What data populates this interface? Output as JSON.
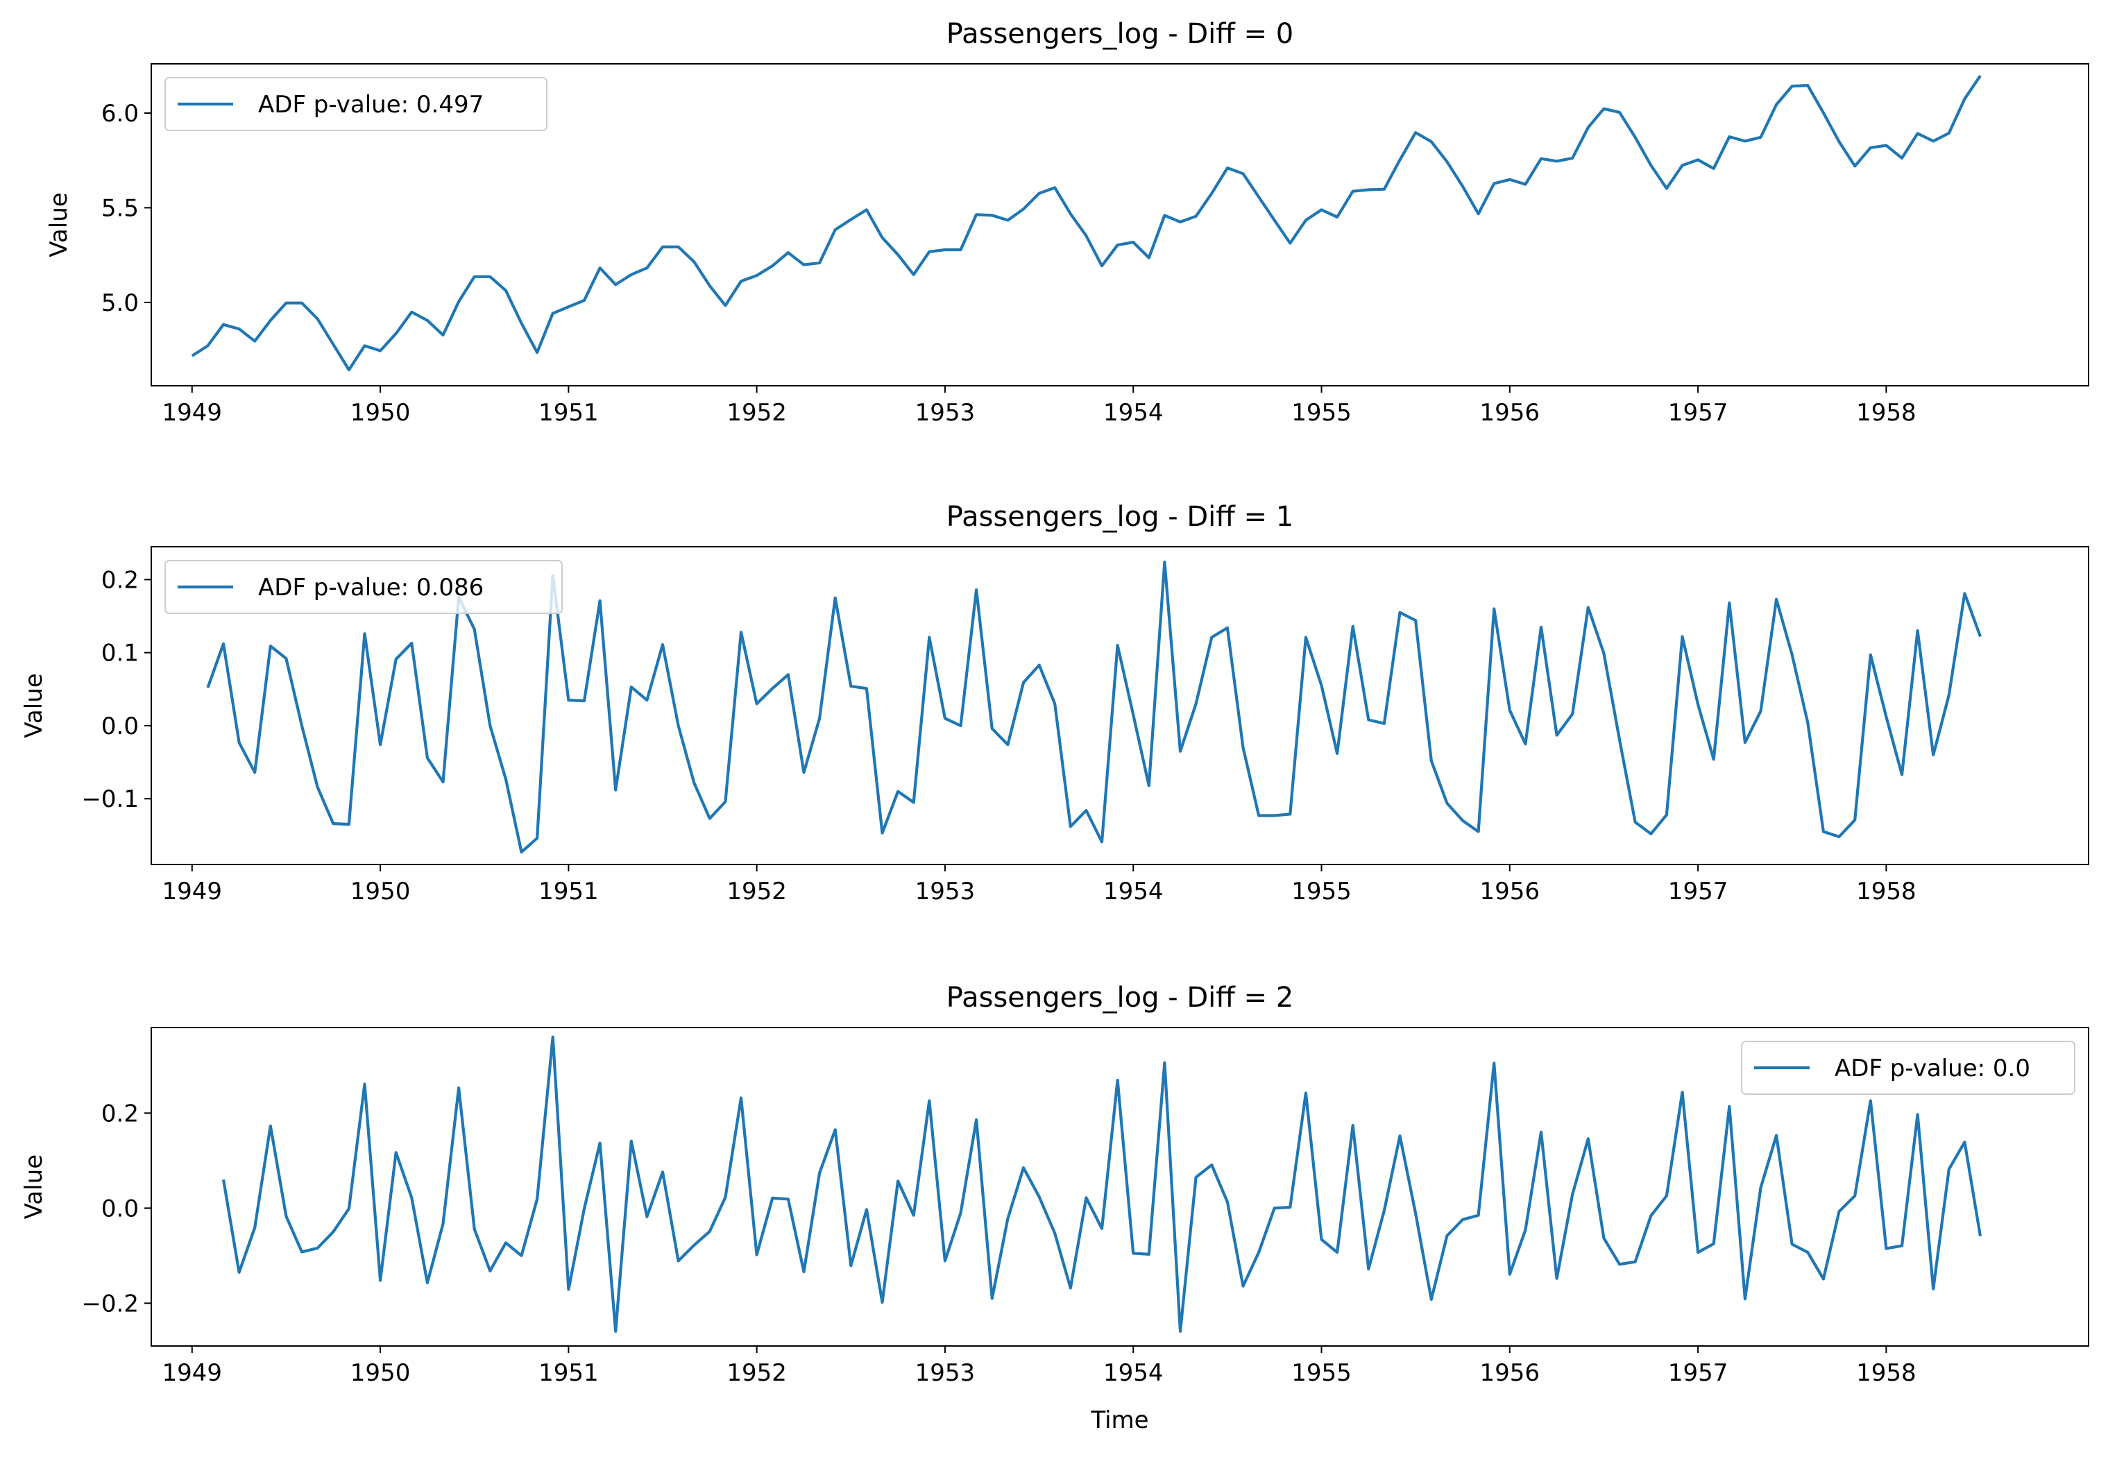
{
  "figure": {
    "xlabel": "Time",
    "line_color": "#1f77b4"
  },
  "chart_data": [
    {
      "type": "line",
      "title": "Passengers_log - Diff = 0",
      "xlabel": "",
      "ylabel": "Value",
      "x_start": "1949-01",
      "x_step": "1 month",
      "xticks": [
        "1949",
        "1950",
        "1951",
        "1952",
        "1953",
        "1954",
        "1955",
        "1956",
        "1957",
        "1958"
      ],
      "yticks": [
        "5.0",
        "5.5",
        "6.0"
      ],
      "ylim": [
        4.56,
        6.26
      ],
      "legend_location": "upper left",
      "grid": false,
      "series": [
        {
          "name": "ADF p-value: 0.497",
          "values": [
            4.718,
            4.771,
            4.883,
            4.86,
            4.796,
            4.905,
            4.997,
            4.997,
            4.913,
            4.779,
            4.644,
            4.771,
            4.745,
            4.836,
            4.949,
            4.905,
            4.828,
            5.004,
            5.136,
            5.136,
            5.063,
            4.89,
            4.736,
            4.942,
            4.977,
            5.011,
            5.182,
            5.094,
            5.147,
            5.182,
            5.293,
            5.293,
            5.215,
            5.088,
            4.984,
            5.112,
            5.142,
            5.193,
            5.263,
            5.199,
            5.209,
            5.384,
            5.438,
            5.489,
            5.342,
            5.252,
            5.147,
            5.268,
            5.278,
            5.278,
            5.464,
            5.46,
            5.434,
            5.493,
            5.576,
            5.606,
            5.468,
            5.352,
            5.193,
            5.303,
            5.318,
            5.236,
            5.46,
            5.425,
            5.455,
            5.576,
            5.71,
            5.68,
            5.557,
            5.434,
            5.313,
            5.434,
            5.489,
            5.451,
            5.587,
            5.595,
            5.598,
            5.753,
            5.897,
            5.849,
            5.743,
            5.613,
            5.468,
            5.628,
            5.649,
            5.624,
            5.759,
            5.746,
            5.762,
            5.924,
            6.023,
            6.004,
            5.872,
            5.724,
            5.602,
            5.724,
            5.753,
            5.707,
            5.875,
            5.852,
            5.872,
            6.045,
            6.142,
            6.146,
            6.001,
            5.849,
            5.72,
            5.817,
            5.829,
            5.762,
            5.892,
            5.852,
            5.894,
            6.075,
            6.197
          ]
        }
      ]
    },
    {
      "type": "line",
      "title": "Passengers_log - Diff = 1",
      "xlabel": "",
      "ylabel": "Value",
      "x_start": "1949-02",
      "x_step": "1 month",
      "xticks": [
        "1949",
        "1950",
        "1951",
        "1952",
        "1953",
        "1954",
        "1955",
        "1956",
        "1957",
        "1958"
      ],
      "yticks": [
        "−0.1",
        "0.0",
        "0.1",
        "0.2"
      ],
      "ylim": [
        -0.19,
        0.245
      ],
      "legend_location": "upper left",
      "grid": false,
      "series": [
        {
          "name": "ADF p-value: 0.086",
          "values": [
            0.052,
            0.112,
            -0.023,
            -0.064,
            0.109,
            0.092,
            0.0,
            -0.084,
            -0.134,
            -0.135,
            0.126,
            -0.026,
            0.091,
            0.113,
            -0.044,
            -0.077,
            0.176,
            0.132,
            0.0,
            -0.073,
            -0.173,
            -0.154,
            0.206,
            0.035,
            0.034,
            0.171,
            -0.088,
            0.053,
            0.035,
            0.111,
            0.0,
            -0.078,
            -0.127,
            -0.104,
            0.128,
            0.03,
            0.051,
            0.07,
            -0.064,
            0.01,
            0.175,
            0.054,
            0.051,
            -0.147,
            -0.09,
            -0.105,
            0.121,
            0.01,
            0.0,
            0.186,
            -0.004,
            -0.026,
            0.059,
            0.083,
            0.03,
            -0.138,
            -0.116,
            -0.159,
            0.11,
            0.015,
            -0.082,
            0.224,
            -0.035,
            0.03,
            0.121,
            0.134,
            -0.03,
            -0.123,
            -0.123,
            -0.121,
            0.121,
            0.055,
            -0.038,
            0.136,
            0.008,
            0.003,
            0.155,
            0.144,
            -0.048,
            -0.106,
            -0.13,
            -0.145,
            0.16,
            0.021,
            -0.025,
            0.135,
            -0.013,
            0.016,
            0.162,
            0.099,
            -0.019,
            -0.132,
            -0.148,
            -0.122,
            0.122,
            0.029,
            -0.046,
            0.168,
            -0.023,
            0.02,
            0.173,
            0.097,
            0.004,
            -0.145,
            -0.152,
            -0.129,
            0.097,
            0.012,
            -0.067,
            0.13,
            -0.04,
            0.042,
            0.181,
            0.122
          ]
        }
      ]
    },
    {
      "type": "line",
      "title": "Passengers_log - Diff = 2",
      "xlabel": "Time",
      "ylabel": "Value",
      "x_start": "1949-03",
      "x_step": "1 month",
      "xticks": [
        "1949",
        "1950",
        "1951",
        "1952",
        "1953",
        "1954",
        "1955",
        "1956",
        "1957",
        "1958"
      ],
      "yticks": [
        "−0.2",
        "0.0",
        "0.2"
      ],
      "ylim": [
        -0.29,
        0.38
      ],
      "legend_location": "upper right",
      "grid": false,
      "series": [
        {
          "name": "ADF p-value: 0.0",
          "values": [
            0.06,
            -0.135,
            -0.041,
            0.173,
            -0.017,
            -0.092,
            -0.084,
            -0.05,
            -0.001,
            0.261,
            -0.152,
            0.117,
            0.022,
            -0.157,
            -0.033,
            0.253,
            -0.044,
            -0.132,
            -0.073,
            -0.1,
            0.019,
            0.36,
            -0.171,
            -0.001,
            0.137,
            -0.259,
            0.141,
            -0.018,
            0.076,
            -0.111,
            -0.078,
            -0.049,
            0.023,
            0.232,
            -0.098,
            0.021,
            0.019,
            -0.134,
            0.074,
            0.165,
            -0.121,
            -0.003,
            -0.198,
            0.057,
            -0.015,
            0.226,
            -0.111,
            -0.01,
            0.186,
            -0.19,
            -0.022,
            0.085,
            0.024,
            -0.053,
            -0.168,
            0.022,
            -0.043,
            0.269,
            -0.095,
            -0.097,
            0.306,
            -0.259,
            0.065,
            0.091,
            0.013,
            -0.164,
            -0.093,
            0.0,
            0.002,
            0.242,
            -0.066,
            -0.093,
            0.174,
            -0.128,
            -0.005,
            0.152,
            -0.011,
            -0.192,
            -0.058,
            -0.024,
            -0.015,
            0.305,
            -0.139,
            -0.046,
            0.16,
            -0.148,
            0.029,
            0.146,
            -0.063,
            -0.118,
            -0.113,
            -0.016,
            0.026,
            0.244,
            -0.093,
            -0.075,
            0.214,
            -0.191,
            0.043,
            0.153,
            -0.076,
            -0.093,
            -0.149,
            -0.007,
            0.026,
            0.226,
            -0.085,
            -0.079,
            0.197,
            -0.17,
            0.082,
            0.139,
            -0.059
          ]
        }
      ]
    }
  ]
}
